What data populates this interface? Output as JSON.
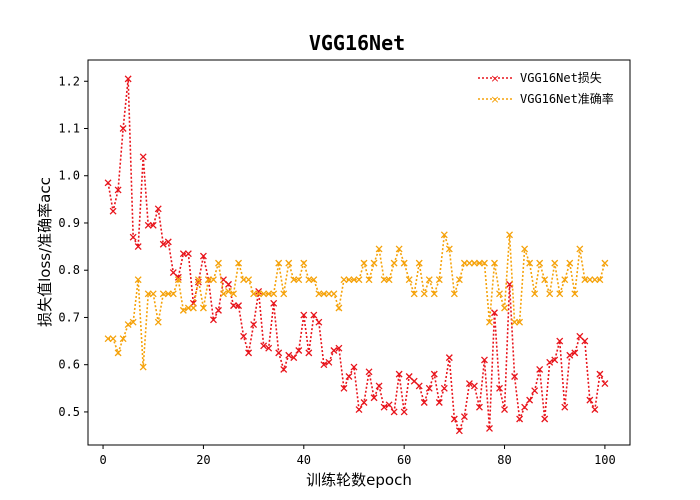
{
  "chart_data": {
    "type": "line",
    "title": "VGG16Net",
    "xlabel": "训练轮数epoch",
    "ylabel": "损失值loss/准确率acc",
    "xlim": [
      -3,
      105
    ],
    "ylim": [
      0.43,
      1.245
    ],
    "xticks": [
      0,
      20,
      40,
      60,
      80,
      100
    ],
    "yticks": [
      0.5,
      0.6,
      0.7,
      0.8,
      0.9,
      1.0,
      1.1,
      1.2
    ],
    "legend_position": "top-right",
    "grid": false,
    "x": [
      1,
      2,
      3,
      4,
      5,
      6,
      7,
      8,
      9,
      10,
      11,
      12,
      13,
      14,
      15,
      16,
      17,
      18,
      19,
      20,
      21,
      22,
      23,
      24,
      25,
      26,
      27,
      28,
      29,
      30,
      31,
      32,
      33,
      34,
      35,
      36,
      37,
      38,
      39,
      40,
      41,
      42,
      43,
      44,
      45,
      46,
      47,
      48,
      49,
      50,
      51,
      52,
      53,
      54,
      55,
      56,
      57,
      58,
      59,
      60,
      61,
      62,
      63,
      64,
      65,
      66,
      67,
      68,
      69,
      70,
      71,
      72,
      73,
      74,
      75,
      76,
      77,
      78,
      79,
      80,
      81,
      82,
      83,
      84,
      85,
      86,
      87,
      88,
      89,
      90,
      91,
      92,
      93,
      94,
      95,
      96,
      97,
      98,
      99,
      100
    ],
    "series": [
      {
        "name": "VGG16Net损失",
        "color": "#e8141b",
        "marker": "x",
        "linestyle": "dotted",
        "values": [
          0.985,
          0.925,
          0.97,
          1.1,
          1.205,
          0.87,
          0.85,
          1.04,
          0.895,
          0.895,
          0.93,
          0.855,
          0.86,
          0.795,
          0.785,
          0.835,
          0.835,
          0.73,
          0.775,
          0.83,
          0.78,
          0.695,
          0.715,
          0.78,
          0.77,
          0.725,
          0.725,
          0.66,
          0.625,
          0.685,
          0.755,
          0.64,
          0.635,
          0.73,
          0.625,
          0.59,
          0.62,
          0.615,
          0.63,
          0.705,
          0.625,
          0.705,
          0.69,
          0.6,
          0.605,
          0.63,
          0.635,
          0.55,
          0.575,
          0.595,
          0.505,
          0.52,
          0.585,
          0.53,
          0.555,
          0.51,
          0.515,
          0.5,
          0.58,
          0.5,
          0.575,
          0.565,
          0.555,
          0.52,
          0.55,
          0.58,
          0.52,
          0.55,
          0.615,
          0.485,
          0.46,
          0.49,
          0.56,
          0.555,
          0.51,
          0.61,
          0.465,
          0.71,
          0.55,
          0.505,
          0.77,
          0.575,
          0.485,
          0.51,
          0.525,
          0.545,
          0.59,
          0.485,
          0.605,
          0.61,
          0.65,
          0.51,
          0.62,
          0.625,
          0.66,
          0.65,
          0.525,
          0.505,
          0.58,
          0.56
        ]
      },
      {
        "name": "VGG16Net准确率",
        "color": "#f5a20a",
        "marker": "x",
        "linestyle": "dotted",
        "values": [
          0.655,
          0.655,
          0.625,
          0.655,
          0.685,
          0.69,
          0.78,
          0.595,
          0.75,
          0.75,
          0.69,
          0.75,
          0.75,
          0.75,
          0.78,
          0.715,
          0.72,
          0.72,
          0.78,
          0.72,
          0.78,
          0.78,
          0.815,
          0.75,
          0.755,
          0.75,
          0.815,
          0.78,
          0.78,
          0.75,
          0.75,
          0.75,
          0.75,
          0.75,
          0.815,
          0.75,
          0.815,
          0.78,
          0.78,
          0.815,
          0.78,
          0.78,
          0.75,
          0.75,
          0.75,
          0.75,
          0.72,
          0.78,
          0.78,
          0.78,
          0.78,
          0.815,
          0.78,
          0.815,
          0.845,
          0.78,
          0.78,
          0.815,
          0.845,
          0.815,
          0.78,
          0.75,
          0.815,
          0.75,
          0.78,
          0.75,
          0.78,
          0.875,
          0.845,
          0.75,
          0.78,
          0.815,
          0.815,
          0.815,
          0.815,
          0.815,
          0.69,
          0.815,
          0.75,
          0.72,
          0.875,
          0.69,
          0.69,
          0.845,
          0.815,
          0.75,
          0.815,
          0.78,
          0.75,
          0.815,
          0.75,
          0.78,
          0.815,
          0.75,
          0.845,
          0.78,
          0.78,
          0.78,
          0.78,
          0.815
        ]
      }
    ]
  }
}
